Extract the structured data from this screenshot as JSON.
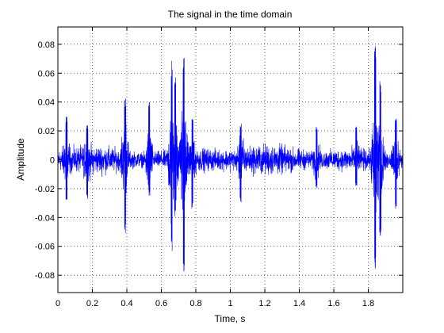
{
  "chart_data": {
    "type": "line",
    "title": "The signal in the time domain",
    "xlabel": "Time, s",
    "ylabel": "Amplitude",
    "xlim": [
      0,
      2.0
    ],
    "ylim": [
      -0.092,
      0.092
    ],
    "x_ticks": [
      0,
      0.2,
      0.4,
      0.6,
      0.8,
      1,
      1.2,
      1.4,
      1.6,
      1.8
    ],
    "x_tick_labels": [
      "0",
      "0.2",
      "0.4",
      "0.6",
      "0.8",
      "1",
      "1.2",
      "1.4",
      "1.6",
      "1.8"
    ],
    "y_ticks": [
      -0.08,
      -0.06,
      -0.04,
      -0.02,
      0,
      0.02,
      0.04,
      0.06,
      0.08
    ],
    "y_tick_labels": [
      "-0.08",
      "-0.06",
      "-0.04",
      "-0.02",
      "0",
      "0.02",
      "0.04",
      "0.06",
      "0.08"
    ],
    "grid": true,
    "grid_style": "dotted",
    "series_color": "#0000ff",
    "series": [
      {
        "values_description_free": true,
        "x_range": [
          0,
          2.0
        ],
        "baseline_amplitude": 0.014,
        "peaks": [
          {
            "x": 0.05,
            "max": 0.03,
            "min": -0.028
          },
          {
            "x": 0.17,
            "max": 0.025,
            "min": -0.028
          },
          {
            "x": 0.39,
            "max": 0.043,
            "min": -0.052
          },
          {
            "x": 0.53,
            "max": 0.04,
            "min": -0.025
          },
          {
            "x": 0.66,
            "max": 0.064,
            "min": -0.053
          },
          {
            "x": 0.68,
            "max": 0.06,
            "min": -0.04
          },
          {
            "x": 0.73,
            "max": 0.071,
            "min": -0.084
          },
          {
            "x": 0.78,
            "max": 0.03,
            "min": -0.034
          },
          {
            "x": 1.06,
            "max": 0.025,
            "min": -0.03
          },
          {
            "x": 1.5,
            "max": 0.024,
            "min": -0.02
          },
          {
            "x": 1.73,
            "max": 0.024,
            "min": -0.018
          },
          {
            "x": 1.84,
            "max": 0.081,
            "min": -0.077
          },
          {
            "x": 1.87,
            "max": 0.055,
            "min": -0.057
          },
          {
            "x": 1.96,
            "max": 0.03,
            "min": -0.035
          }
        ]
      }
    ]
  }
}
